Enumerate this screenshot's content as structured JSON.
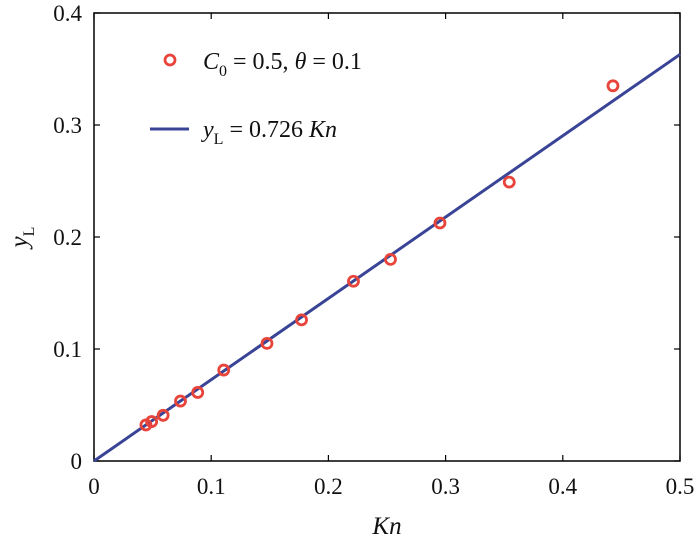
{
  "chart_data": {
    "type": "scatter",
    "xlabel": "Kn",
    "ylabel": {
      "main": "y",
      "sub": "L"
    },
    "xlim": [
      0,
      0.5
    ],
    "ylim": [
      0,
      0.4
    ],
    "xticks": [
      "0",
      "0.1",
      "0.2",
      "0.3",
      "0.4",
      "0.5"
    ],
    "yticks": [
      "0",
      "0.1",
      "0.2",
      "0.3",
      "0.4"
    ],
    "grid": false,
    "legend_position": "top-left",
    "series": [
      {
        "kind": "scatter",
        "marker": "open-circle",
        "color": "#e8443a",
        "legend": {
          "c": "C",
          "c_sub": "0",
          "c_rest": " = 0.5, ",
          "theta": "θ",
          "theta_rest": " = 0.1"
        },
        "points": [
          {
            "x": 0.0443,
            "y": 0.0322
          },
          {
            "x": 0.0492,
            "y": 0.0352
          },
          {
            "x": 0.059,
            "y": 0.0408
          },
          {
            "x": 0.0738,
            "y": 0.0535
          },
          {
            "x": 0.0885,
            "y": 0.0612
          },
          {
            "x": 0.1107,
            "y": 0.0812
          },
          {
            "x": 0.1476,
            "y": 0.105
          },
          {
            "x": 0.1771,
            "y": 0.126
          },
          {
            "x": 0.2214,
            "y": 0.1605
          },
          {
            "x": 0.253,
            "y": 0.18
          },
          {
            "x": 0.2952,
            "y": 0.2125
          },
          {
            "x": 0.3543,
            "y": 0.249
          },
          {
            "x": 0.4428,
            "y": 0.335
          }
        ]
      },
      {
        "kind": "line",
        "color": "#3a4496",
        "slope": 0.726,
        "x_range": [
          0,
          0.5
        ],
        "legend": {
          "y": "y",
          "y_sub": "L",
          "rest": " = 0.726 ",
          "kn": "Kn"
        }
      }
    ]
  }
}
